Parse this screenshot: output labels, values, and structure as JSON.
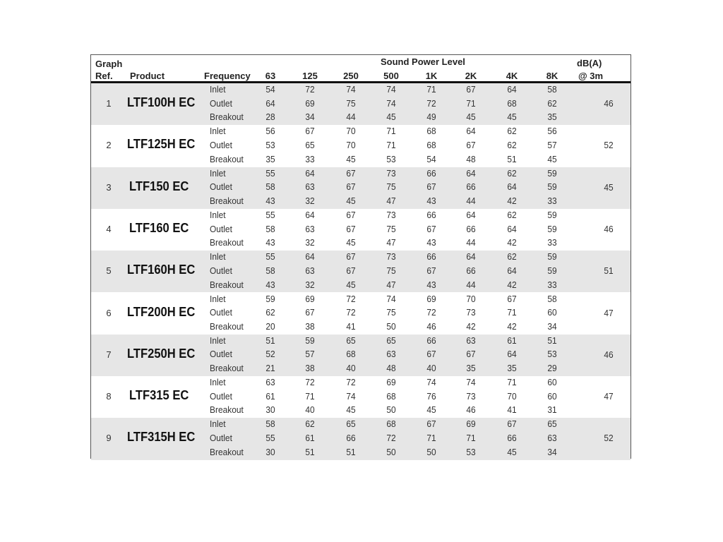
{
  "header": {
    "graph_ref_line1": "Graph",
    "graph_ref_line2": "Ref.",
    "product": "Product",
    "frequency": "Frequency",
    "sound_power_level": "Sound Power Level",
    "bands": [
      "63",
      "125",
      "250",
      "500",
      "1K",
      "2K",
      "4K",
      "8K"
    ],
    "dba_line1": "dB(A)",
    "dba_line2": "@ 3m"
  },
  "products": [
    {
      "ref": "1",
      "name": "LTF100H EC",
      "dba": "46",
      "rows": [
        {
          "label": "Inlet",
          "values": [
            "54",
            "72",
            "74",
            "74",
            "71",
            "67",
            "64",
            "58"
          ]
        },
        {
          "label": "Outlet",
          "values": [
            "64",
            "69",
            "75",
            "74",
            "72",
            "71",
            "68",
            "62"
          ]
        },
        {
          "label": "Breakout",
          "values": [
            "28",
            "34",
            "44",
            "45",
            "49",
            "45",
            "45",
            "35"
          ]
        }
      ]
    },
    {
      "ref": "2",
      "name": "LTF125H EC",
      "dba": "52",
      "rows": [
        {
          "label": "Inlet",
          "values": [
            "56",
            "67",
            "70",
            "71",
            "68",
            "64",
            "62",
            "56"
          ]
        },
        {
          "label": "Outlet",
          "values": [
            "53",
            "65",
            "70",
            "71",
            "68",
            "67",
            "62",
            "57"
          ]
        },
        {
          "label": "Breakout",
          "values": [
            "35",
            "33",
            "45",
            "53",
            "54",
            "48",
            "51",
            "45"
          ]
        }
      ]
    },
    {
      "ref": "3",
      "name": "LTF150 EC",
      "dba": "45",
      "rows": [
        {
          "label": "Inlet",
          "values": [
            "55",
            "64",
            "67",
            "73",
            "66",
            "64",
            "62",
            "59"
          ]
        },
        {
          "label": "Outlet",
          "values": [
            "58",
            "63",
            "67",
            "75",
            "67",
            "66",
            "64",
            "59"
          ]
        },
        {
          "label": "Breakout",
          "values": [
            "43",
            "32",
            "45",
            "47",
            "43",
            "44",
            "42",
            "33"
          ]
        }
      ]
    },
    {
      "ref": "4",
      "name": "LTF160 EC",
      "dba": "46",
      "rows": [
        {
          "label": "Inlet",
          "values": [
            "55",
            "64",
            "67",
            "73",
            "66",
            "64",
            "62",
            "59"
          ]
        },
        {
          "label": "Outlet",
          "values": [
            "58",
            "63",
            "67",
            "75",
            "67",
            "66",
            "64",
            "59"
          ]
        },
        {
          "label": "Breakout",
          "values": [
            "43",
            "32",
            "45",
            "47",
            "43",
            "44",
            "42",
            "33"
          ]
        }
      ]
    },
    {
      "ref": "5",
      "name": "LTF160H EC",
      "dba": "51",
      "rows": [
        {
          "label": "Inlet",
          "values": [
            "55",
            "64",
            "67",
            "73",
            "66",
            "64",
            "62",
            "59"
          ]
        },
        {
          "label": "Outlet",
          "values": [
            "58",
            "63",
            "67",
            "75",
            "67",
            "66",
            "64",
            "59"
          ]
        },
        {
          "label": "Breakout",
          "values": [
            "43",
            "32",
            "45",
            "47",
            "43",
            "44",
            "42",
            "33"
          ]
        }
      ]
    },
    {
      "ref": "6",
      "name": "LTF200H EC",
      "dba": "47",
      "rows": [
        {
          "label": "Inlet",
          "values": [
            "59",
            "69",
            "72",
            "74",
            "69",
            "70",
            "67",
            "58"
          ]
        },
        {
          "label": "Outlet",
          "values": [
            "62",
            "67",
            "72",
            "75",
            "72",
            "73",
            "71",
            "60"
          ]
        },
        {
          "label": "Breakout",
          "values": [
            "20",
            "38",
            "41",
            "50",
            "46",
            "42",
            "42",
            "34"
          ]
        }
      ]
    },
    {
      "ref": "7",
      "name": "LTF250H EC",
      "dba": "46",
      "rows": [
        {
          "label": "Inlet",
          "values": [
            "51",
            "59",
            "65",
            "65",
            "66",
            "63",
            "61",
            "51"
          ]
        },
        {
          "label": "Outlet",
          "values": [
            "52",
            "57",
            "68",
            "63",
            "67",
            "67",
            "64",
            "53"
          ]
        },
        {
          "label": "Breakout",
          "values": [
            "21",
            "38",
            "40",
            "48",
            "40",
            "35",
            "35",
            "29"
          ]
        }
      ]
    },
    {
      "ref": "8",
      "name": "LTF315 EC",
      "dba": "47",
      "rows": [
        {
          "label": "Inlet",
          "values": [
            "63",
            "72",
            "72",
            "69",
            "74",
            "74",
            "71",
            "60"
          ]
        },
        {
          "label": "Outlet",
          "values": [
            "61",
            "71",
            "74",
            "68",
            "76",
            "73",
            "70",
            "60"
          ]
        },
        {
          "label": "Breakout",
          "values": [
            "30",
            "40",
            "45",
            "50",
            "45",
            "46",
            "41",
            "31"
          ]
        }
      ]
    },
    {
      "ref": "9",
      "name": "LTF315H EC",
      "dba": "52",
      "rows": [
        {
          "label": "Inlet",
          "values": [
            "58",
            "62",
            "65",
            "68",
            "67",
            "69",
            "67",
            "65"
          ]
        },
        {
          "label": "Outlet",
          "values": [
            "55",
            "61",
            "66",
            "72",
            "71",
            "71",
            "66",
            "63"
          ]
        },
        {
          "label": "Breakout",
          "values": [
            "30",
            "51",
            "51",
            "50",
            "50",
            "53",
            "45",
            "34"
          ]
        }
      ]
    }
  ],
  "colors": {
    "shade": "#e6e6e6",
    "rule": "#111111"
  }
}
